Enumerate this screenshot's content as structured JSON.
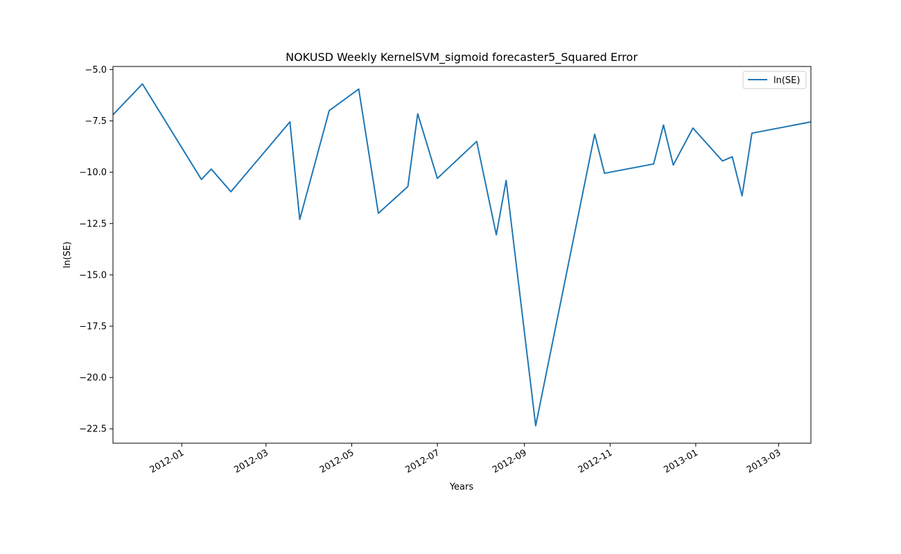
{
  "chart_data": {
    "type": "line",
    "title": "NOKUSD Weekly KernelSVM_sigmoid forecaster5_Squared Error",
    "xlabel": "Years",
    "ylabel": "ln(SE)",
    "xlim": [
      "2011-11-13",
      "2013-03-24"
    ],
    "ylim": [
      -23.2,
      -4.85
    ],
    "grid": false,
    "legend_position": "top-right",
    "x_ticks": [
      "2012-01",
      "2012-03",
      "2012-05",
      "2012-07",
      "2012-09",
      "2012-11",
      "2013-01",
      "2013-03"
    ],
    "y_ticks": [
      -5.0,
      -7.5,
      -10.0,
      -12.5,
      -15.0,
      -17.5,
      -20.0,
      -22.5
    ],
    "series": [
      {
        "name": "ln(SE)",
        "color": "#1f77b4",
        "points": [
          {
            "x": "2011-11-13",
            "y": -7.2
          },
          {
            "x": "2011-12-04",
            "y": -5.7
          },
          {
            "x": "2012-01-15",
            "y": -10.35
          },
          {
            "x": "2012-01-22",
            "y": -9.85
          },
          {
            "x": "2012-02-05",
            "y": -10.95
          },
          {
            "x": "2012-03-18",
            "y": -7.55
          },
          {
            "x": "2012-03-25",
            "y": -12.3
          },
          {
            "x": "2012-04-15",
            "y": -7.0
          },
          {
            "x": "2012-05-06",
            "y": -5.95
          },
          {
            "x": "2012-05-20",
            "y": -12.0
          },
          {
            "x": "2012-06-10",
            "y": -10.7
          },
          {
            "x": "2012-06-17",
            "y": -7.15
          },
          {
            "x": "2012-07-01",
            "y": -10.3
          },
          {
            "x": "2012-07-29",
            "y": -8.5
          },
          {
            "x": "2012-08-12",
            "y": -13.05
          },
          {
            "x": "2012-08-19",
            "y": -10.4
          },
          {
            "x": "2012-09-09",
            "y": -22.35
          },
          {
            "x": "2012-10-21",
            "y": -8.15
          },
          {
            "x": "2012-10-28",
            "y": -10.05
          },
          {
            "x": "2012-12-02",
            "y": -9.6
          },
          {
            "x": "2012-12-09",
            "y": -7.7
          },
          {
            "x": "2012-12-16",
            "y": -9.65
          },
          {
            "x": "2012-12-30",
            "y": -7.85
          },
          {
            "x": "2013-01-20",
            "y": -9.45
          },
          {
            "x": "2013-01-27",
            "y": -9.25
          },
          {
            "x": "2013-02-03",
            "y": -11.15
          },
          {
            "x": "2013-02-10",
            "y": -8.1
          },
          {
            "x": "2013-03-24",
            "y": -7.55
          }
        ]
      }
    ]
  }
}
